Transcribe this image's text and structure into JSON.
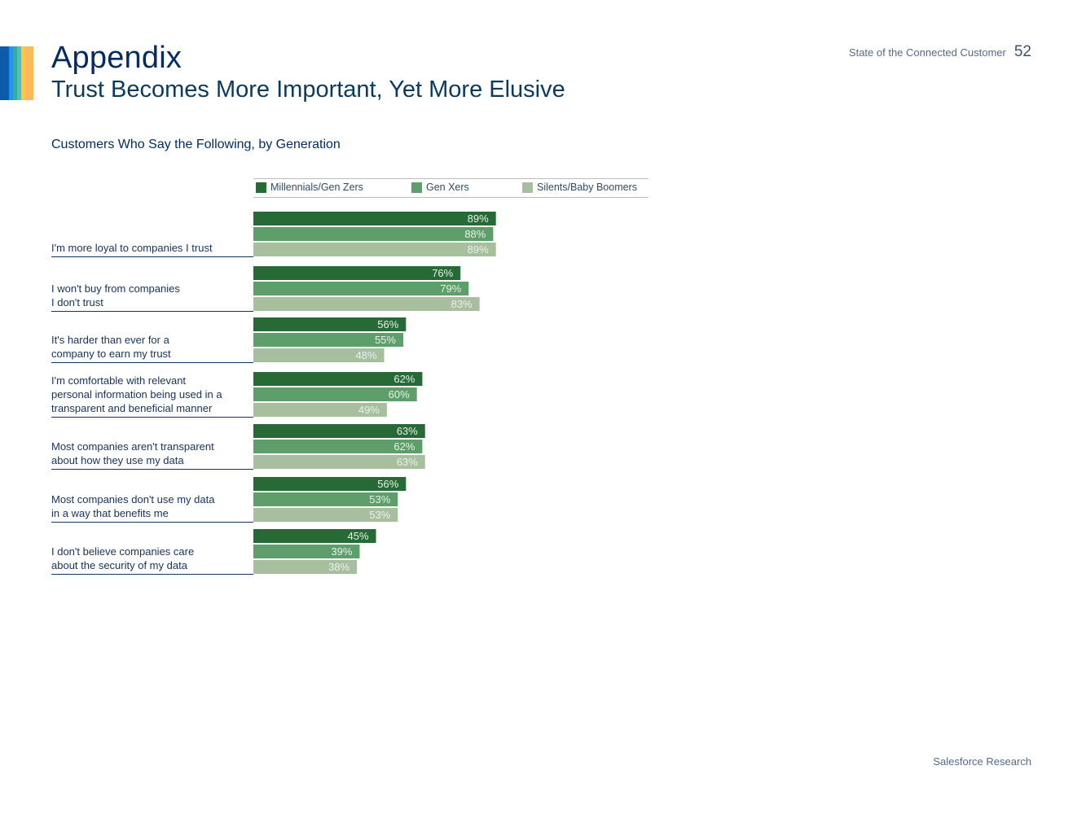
{
  "header": {
    "title": "Appendix",
    "subtitle": "Trust Becomes More Important, Yet More Elusive",
    "report_name": "State of the Connected Customer",
    "page_number": "52"
  },
  "colors": {
    "stripes": [
      "#0b5cab",
      "#1b96ff",
      "#3ba99c",
      "#4bc0c8",
      "#f9c74f",
      "#fcb95b"
    ],
    "series": [
      "#276a35",
      "#5e9e6b",
      "#a8bf9f"
    ],
    "rule": "#16325c"
  },
  "footer": {
    "text": "Salesforce Research"
  },
  "chart_data": {
    "type": "bar",
    "orientation": "horizontal",
    "title": "Customers Who Say the Following, by Generation",
    "value_suffix": "%",
    "xlim": [
      0,
      100
    ],
    "grid": false,
    "legend_position": "top",
    "categories": [
      "I'm more loyal to companies I trust",
      "I won't buy from companies\nI don't trust",
      "It's harder than ever for a\ncompany to earn my trust",
      "I'm comfortable with relevant\npersonal information being used in a\ntransparent and beneficial manner",
      "Most companies aren't transparent\nabout how they use my data",
      "Most companies don't use my data\nin a way that benefits me",
      "I don't believe companies care\nabout the security of my data"
    ],
    "series": [
      {
        "name": "Millennials/Gen Zers",
        "values": [
          89,
          76,
          56,
          62,
          63,
          56,
          45
        ]
      },
      {
        "name": "Gen Xers",
        "values": [
          88,
          79,
          55,
          60,
          62,
          53,
          39
        ]
      },
      {
        "name": "Silents/Baby Boomers",
        "values": [
          89,
          83,
          48,
          49,
          63,
          53,
          38
        ]
      }
    ]
  }
}
